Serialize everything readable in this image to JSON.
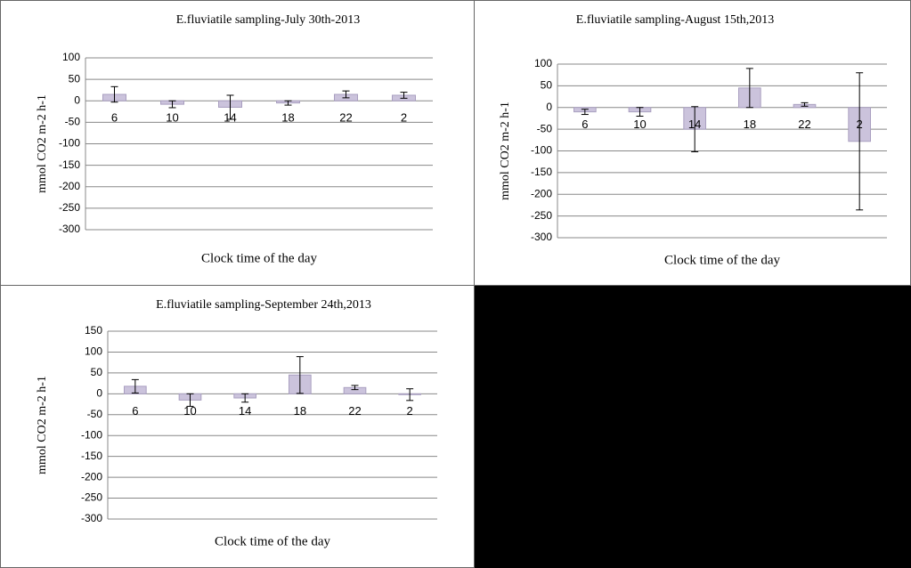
{
  "chart_data": [
    {
      "type": "bar",
      "title": "E.fluviatile sampling-July 30th-2013",
      "y_label": "mmol CO2  m-2 h-1",
      "x_label": "Clock time of the day",
      "categories": [
        "6",
        "10",
        "14",
        "18",
        "22",
        "2"
      ],
      "values": [
        15,
        -8,
        -15,
        -5,
        15,
        13
      ],
      "errors": [
        18,
        8,
        28,
        5,
        8,
        7
      ],
      "color": "#cbc3dc",
      "ylim": [
        -300,
        100
      ],
      "yticks": [
        -300,
        -250,
        -200,
        -150,
        -100,
        -50,
        0,
        50,
        100
      ],
      "grid": true
    },
    {
      "type": "bar",
      "title": "E.fluviatile sampling-August 15th,2013",
      "y_label": "mmol CO2 m-2 h-1",
      "x_label": "Clock time of the day",
      "categories": [
        "6",
        "10",
        "14",
        "18",
        "22",
        "2"
      ],
      "values": [
        -10,
        -10,
        -50,
        45,
        7,
        -78
      ],
      "errors": [
        6,
        10,
        52,
        45,
        4,
        158
      ],
      "color": "#cbc3dc",
      "ylim": [
        -300,
        100
      ],
      "yticks": [
        -300,
        -250,
        -200,
        -150,
        -100,
        -50,
        0,
        50,
        100
      ],
      "grid": true
    },
    {
      "type": "bar",
      "title": "E.fluviatile sampling-September 24th,2013",
      "y_label": "mmol CO2  m-2 h-1",
      "x_label": "Clock time of the day",
      "categories": [
        "6",
        "10",
        "14",
        "18",
        "22",
        "2"
      ],
      "values": [
        18,
        -15,
        -10,
        45,
        15,
        -2
      ],
      "errors": [
        16,
        15,
        10,
        44,
        5,
        14
      ],
      "color": "#cbc3dc",
      "ylim": [
        -300,
        150
      ],
      "yticks": [
        -300,
        -250,
        -200,
        -150,
        -100,
        -50,
        0,
        50,
        100,
        150
      ],
      "grid": true
    }
  ]
}
